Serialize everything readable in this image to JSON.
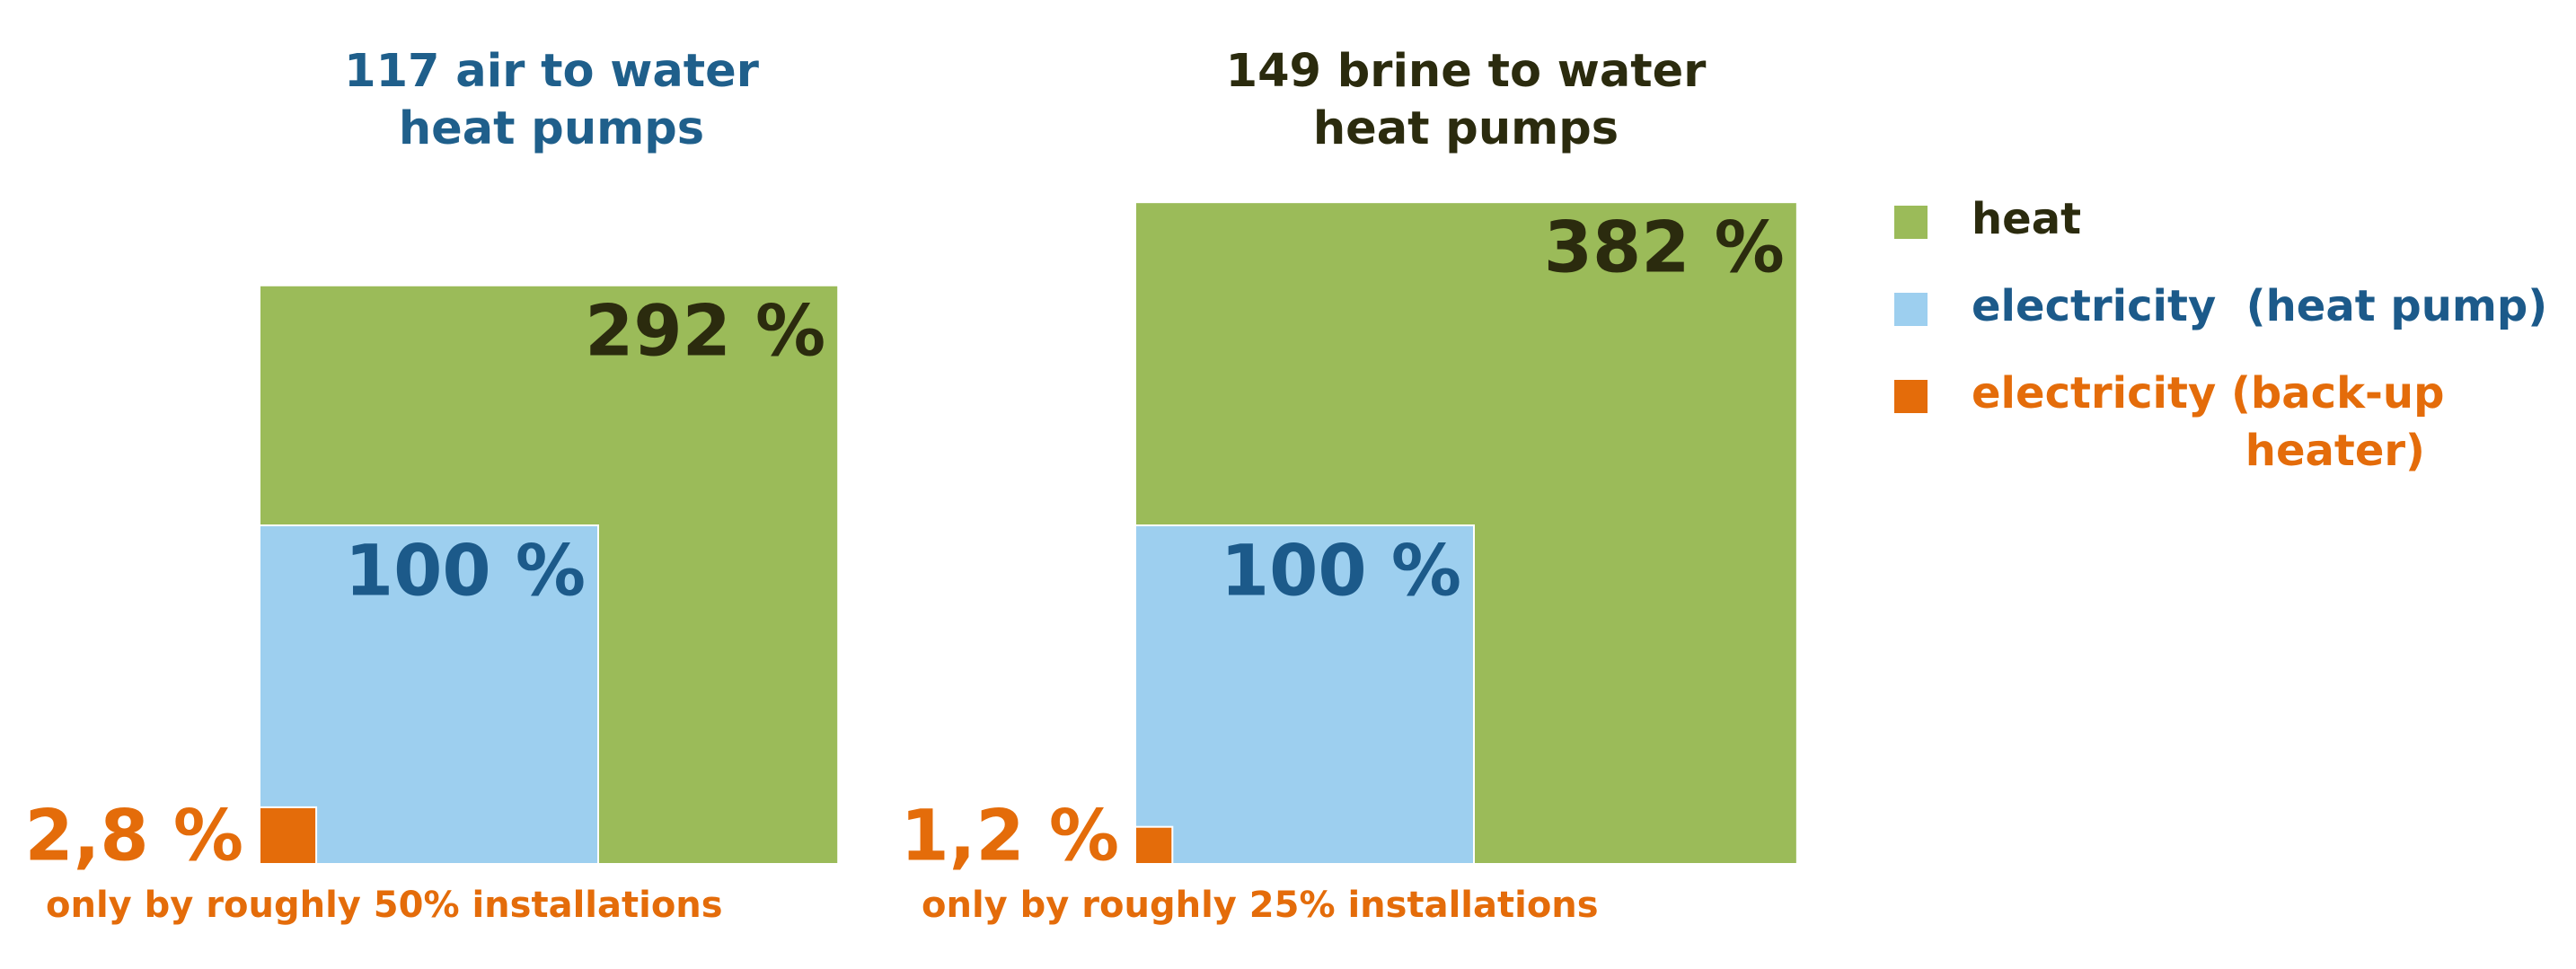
{
  "chart_data": [
    {
      "type": "square-area",
      "title": [
        "117 air to water",
        "heat pumps"
      ],
      "title_color": "#1f5f8b",
      "values": [
        292,
        100,
        2.8
      ],
      "value_labels": [
        "292 %",
        "100 %",
        "2,8 %"
      ],
      "note": "only by roughly 50% installations"
    },
    {
      "type": "square-area",
      "title": [
        "149 brine to water",
        "heat pumps"
      ],
      "title_color": "#2b2b0e",
      "values": [
        382,
        100,
        1.2
      ],
      "value_labels": [
        "382 %",
        "100 %",
        "1,2 %"
      ],
      "note": "only by roughly 25% installations"
    }
  ],
  "legend": [
    {
      "name": [
        "heat"
      ],
      "color": "#9bbb59",
      "text_color": "#2b2b0e"
    },
    {
      "name": [
        "electricity  (heat pump)"
      ],
      "color": "#9dcfef",
      "text_color": "#1c5a8a"
    },
    {
      "name": [
        "electricity (back-up",
        "heater)"
      ],
      "color": "#e46c0a",
      "text_color": "#e46c0a"
    }
  ]
}
